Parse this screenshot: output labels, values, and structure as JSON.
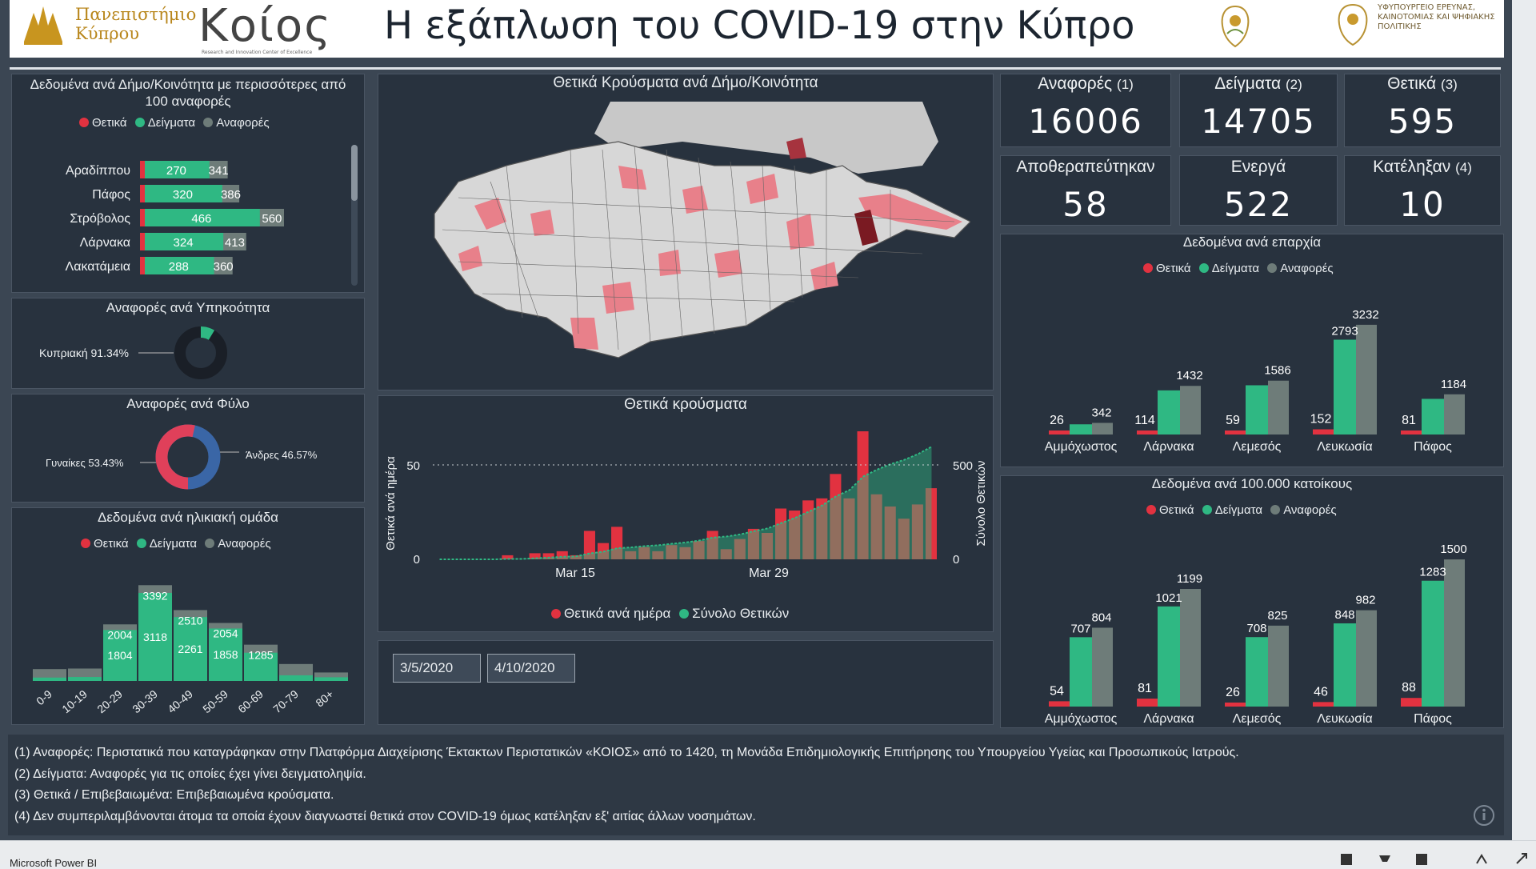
{
  "header": {
    "title": "Η εξάπλωση του COVID-19 στην Κύπρο",
    "uni_logo_line1": "Πανεπιστήμιο",
    "uni_logo_line2": "Κύπρου",
    "koios_logo": "Κοίος",
    "koios_sub": "Research and Innovation Center of Excellence",
    "ministry_text": "ΥΦΥΠΟΥΡΓΕΙΟ ΕΡΕΥΝΑΣ, ΚΑΙΝΟΤΟΜΙΑΣ ΚΑΙ ΨΗΦΙΑΚΗΣ ΠΟΛΙΤΙΚΗΣ"
  },
  "municipalities": {
    "title": "Δεδομένα ανά Δήμο/Κοινότητα με περισσότερες από 100 αναφορές",
    "legend": [
      "Θετικά",
      "Δείγματα",
      "Αναφορές"
    ],
    "rows": [
      {
        "name": "Αραδίππου",
        "positive": 11,
        "samples": 270,
        "reports": 341
      },
      {
        "name": "Πάφος",
        "positive": 10,
        "samples": 320,
        "reports": 386
      },
      {
        "name": "Στρόβολος",
        "positive": 12,
        "samples": 466,
        "reports": 560
      },
      {
        "name": "Λάρνακα",
        "positive": 9,
        "samples": 324,
        "reports": 413
      },
      {
        "name": "Λακατάμεια",
        "positive": 6,
        "samples": 288,
        "reports": 360
      }
    ]
  },
  "nationality": {
    "title": "Αναφορές ανά Υπηκοότητα",
    "label": "Κυπριακή 91.34%",
    "share": 0.9134
  },
  "gender": {
    "title": "Αναφορές ανά Φύλο",
    "female_label": "Γυναίκες 53.43%",
    "male_label": "Άνδρες 46.57%",
    "female_share": 0.5343
  },
  "age": {
    "title": "Δεδομένα ανά ηλικιακή ομάδα",
    "legend": [
      "Θετικά",
      "Δείγματα",
      "Αναφορές"
    ],
    "groups": [
      "0-9",
      "10-19",
      "20-29",
      "30-39",
      "40-49",
      "50-59",
      "60-69",
      "70-79",
      "80+"
    ],
    "samples": [
      120,
      140,
      1804,
      3118,
      2261,
      1858,
      1000,
      200,
      130
    ],
    "reports": [
      420,
      440,
      2004,
      3392,
      2510,
      2054,
      1285,
      600,
      300
    ],
    "sample_labels": [
      "",
      "",
      "1804",
      "3118",
      "2261",
      "1858",
      "",
      "",
      ""
    ],
    "report_labels": [
      "",
      "",
      "2004",
      "3392",
      "2510",
      "2054",
      "1285",
      "",
      ""
    ]
  },
  "map": {
    "title": "Θετικά Κρούσματα ανά Δήμο/Κοινότητα"
  },
  "timeline": {
    "title": "Θετικά κρούσματα",
    "ylabel_left": "Θετικά ανά ημέρα",
    "ylabel_right": "Σύνολο Θετικών",
    "left_ticks": [
      "50",
      "0"
    ],
    "right_ticks": [
      "500",
      "0"
    ],
    "x_ticks": [
      "Mar 15",
      "Mar 29"
    ],
    "legend": [
      "Θετικά ανά ημέρα",
      "Σύνολο Θετικών"
    ]
  },
  "dates": {
    "start": "3/5/2020",
    "end": "4/10/2020"
  },
  "kpis": [
    {
      "label": "Αναφορές",
      "sup": "(1)",
      "value": "16006"
    },
    {
      "label": "Δείγματα",
      "sup": "(2)",
      "value": "14705"
    },
    {
      "label": "Θετικά",
      "sup": "(3)",
      "value": "595"
    },
    {
      "label": "Αποθεραπεύτηκαν",
      "sup": "",
      "value": "58"
    },
    {
      "label": "Ενεργά",
      "sup": "",
      "value": "522"
    },
    {
      "label": "Κατέληξαν",
      "sup": "(4)",
      "value": "10"
    }
  ],
  "district": {
    "title": "Δεδομένα ανά επαρχία",
    "legend": [
      "Θετικά",
      "Δείγματα",
      "Αναφορές"
    ],
    "categories": [
      "Αμμόχωστος",
      "Λάρνακα",
      "Λεμεσός",
      "Λευκωσία",
      "Πάφος"
    ],
    "positive": [
      26,
      114,
      59,
      152,
      81
    ],
    "samples": [
      300,
      1300,
      1450,
      2793,
      1050
    ],
    "reports": [
      342,
      1432,
      1586,
      3232,
      1184
    ],
    "samples_labels": [
      "",
      "",
      "",
      "2793",
      ""
    ]
  },
  "per100k": {
    "title": "Δεδομένα ανά 100.000 κατοίκους",
    "legend": [
      "Θετικά",
      "Δείγματα",
      "Αναφορές"
    ],
    "categories": [
      "Αμμόχωστος",
      "Λάρνακα",
      "Λεμεσός",
      "Λευκωσία",
      "Πάφος"
    ],
    "positive": [
      54,
      81,
      26,
      46,
      88
    ],
    "samples": [
      707,
      1021,
      708,
      848,
      1283
    ],
    "reports": [
      804,
      1199,
      825,
      982,
      1500
    ]
  },
  "notes": [
    "(1) Αναφορές: Περιστατικά που καταγράφηκαν στην Πλατφόρμα Διαχείρισης Έκτακτων Περιστατικών «ΚΟΙΟΣ» από το 1420, τη Μονάδα Επιδημιολογικής Επιτήρησης του Υπουργείου Υγείας και Προσωπικούς Ιατρούς.",
    "(2) Δείγματα: Αναφορές για τις οποίες έχει γίνει δειγματοληψία.",
    "(3) Θετικά / Επιβεβαιωμένα: Επιβεβαιωμένα κρούσματα.",
    "(4) Δεν συμπεριλαμβάνονται άτομα τα οποία έχουν διαγνωστεί θετικά στον COVID-19 όμως κατέληξαν εξ' αιτίας άλλων νοσημάτων."
  ],
  "footer": {
    "product": "Microsoft Power BI"
  },
  "colors": {
    "positive": "#e23240",
    "samples": "#2fb883",
    "reports": "#6e7c79",
    "bg": "#28323e"
  }
}
